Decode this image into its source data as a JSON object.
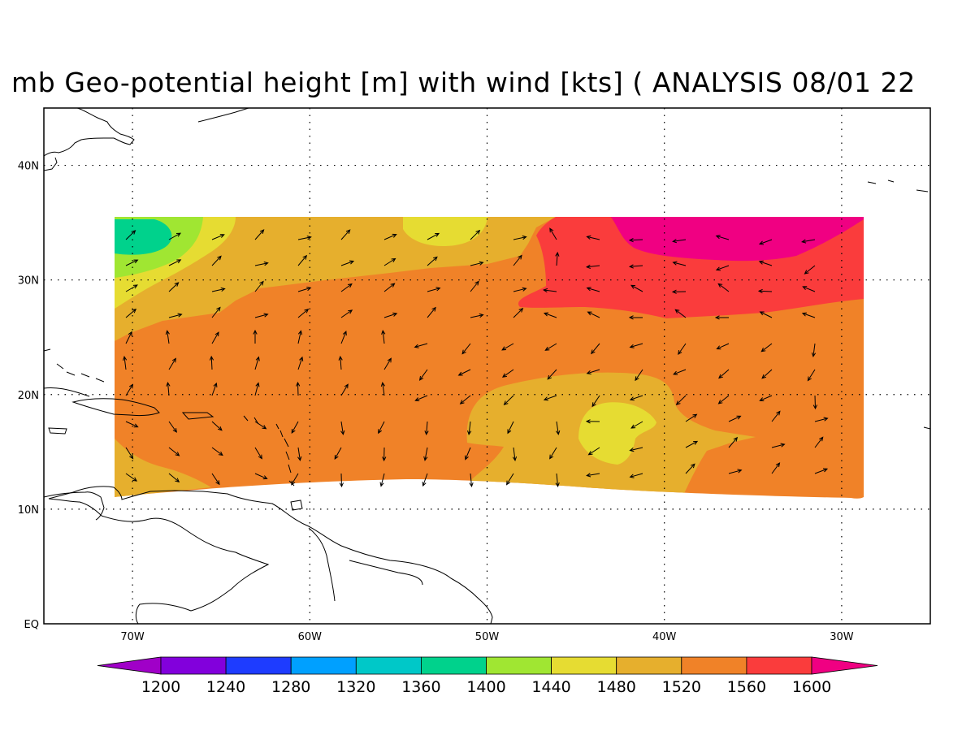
{
  "title": "mb Geo-potential height [m] with wind [kts] ( ANALYSIS 08/01 22",
  "map": {
    "lon_range": [
      -75,
      -25
    ],
    "lat_range": [
      0,
      45
    ],
    "lon_ticks": [
      {
        "value": -70,
        "label": "70W"
      },
      {
        "value": -60,
        "label": "60W"
      },
      {
        "value": -50,
        "label": "50W"
      },
      {
        "value": -40,
        "label": "40W"
      },
      {
        "value": -30,
        "label": "30W"
      }
    ],
    "lat_ticks": [
      {
        "value": 0,
        "label": "EQ"
      },
      {
        "value": 10,
        "label": "10N"
      },
      {
        "value": 20,
        "label": "20N"
      },
      {
        "value": 30,
        "label": "30N"
      },
      {
        "value": 40,
        "label": "40N"
      }
    ],
    "grid": "dotted"
  },
  "colorbar": {
    "labels": [
      "1200",
      "1240",
      "1280",
      "1320",
      "1360",
      "1400",
      "1440",
      "1480",
      "1520",
      "1560",
      "1600"
    ],
    "colors": [
      "#a000c8",
      "#8200dc",
      "#1e3cff",
      "#00a0ff",
      "#00c8c8",
      "#00d28c",
      "#a0e632",
      "#e6dc32",
      "#e6af2d",
      "#f08228",
      "#fa3c3c",
      "#f00082"
    ]
  },
  "field_colors": {
    "c1400": "#00d28c",
    "c1440": "#a0e632",
    "c1480": "#e6dc32",
    "c1520": "#e6af2d",
    "c1560": "#f08228",
    "c1600": "#fa3c3c",
    "c1640": "#f00082"
  }
}
